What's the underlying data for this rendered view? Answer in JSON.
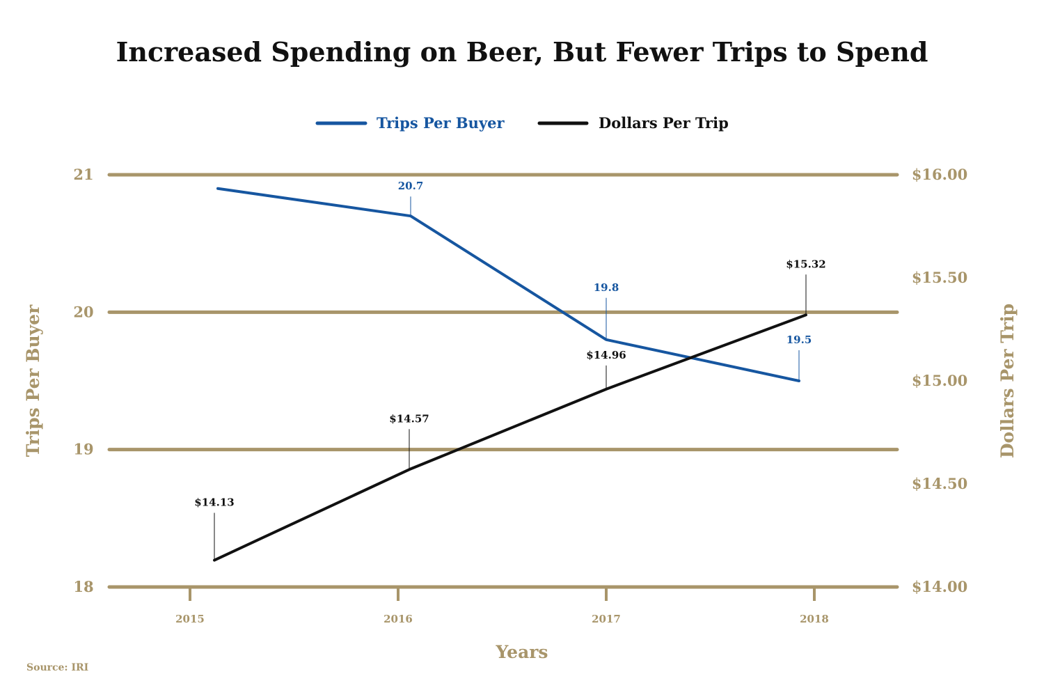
{
  "colors": {
    "gold": "#a8956a",
    "blue": "#1656a0",
    "black": "#111111"
  },
  "source": "Source: IRI",
  "chart_data": {
    "type": "line",
    "title": "Increased Spending on Beer, But Fewer Trips to Spend",
    "xlabel": "Years",
    "ylabel_left": "Trips Per Buyer",
    "ylabel_right": "Dollars Per Trip",
    "x": [
      "2015",
      "2016",
      "2017",
      "2018"
    ],
    "ylim_left": [
      18,
      21
    ],
    "yticks_left": [
      "18",
      "19",
      "20",
      "21"
    ],
    "ylim_right": [
      14.0,
      16.0
    ],
    "yticks_right": [
      "$14.00",
      "$14.50",
      "$15.00",
      "$15.50",
      "$16.00"
    ],
    "grid": true,
    "legend_position": "top-center",
    "series": [
      {
        "name": "Trips Per Buyer",
        "axis": "left",
        "color": "#1656a0",
        "values": [
          20.9,
          20.7,
          19.8,
          19.5
        ],
        "labels": [
          "",
          "20.7",
          "19.8",
          "19.5"
        ]
      },
      {
        "name": "Dollars Per Trip",
        "axis": "right",
        "color": "#111111",
        "values": [
          14.13,
          14.57,
          14.96,
          15.32
        ],
        "labels": [
          "$14.13",
          "$14.57",
          "$14.96",
          "$15.32"
        ]
      }
    ]
  }
}
